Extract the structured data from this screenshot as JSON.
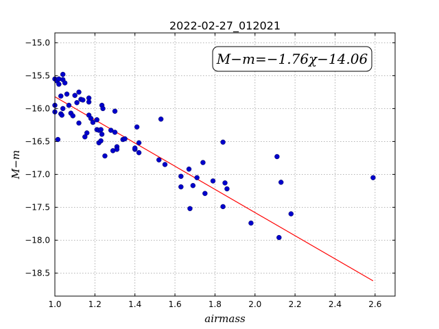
{
  "chart_data": {
    "type": "scatter",
    "title": "2022-02-27_012021",
    "xlabel": "airmass",
    "ylabel": "M−m",
    "annotation": "M−m=−1.76χ−14.06",
    "xlim": [
      1.0,
      2.7
    ],
    "ylim": [
      -18.85,
      -14.85
    ],
    "x_ticks": [
      1.0,
      1.2,
      1.4,
      1.6,
      1.8,
      2.0,
      2.2,
      2.4,
      2.6
    ],
    "x_tick_labels": [
      "1.0",
      "1.2",
      "1.4",
      "1.6",
      "1.8",
      "2.0",
      "2.2",
      "2.4",
      "2.6"
    ],
    "y_ticks": [
      -15.0,
      -15.5,
      -16.0,
      -16.5,
      -17.0,
      -17.5,
      -18.0,
      -18.5
    ],
    "y_tick_labels": [
      "−15.0",
      "−15.5",
      "−16.0",
      "−16.5",
      "−17.0",
      "−17.5",
      "−18.0",
      "−18.5"
    ],
    "grid": true,
    "fit_line": {
      "slope": -1.76,
      "intercept": -14.06,
      "x_range": [
        1.0,
        2.59
      ],
      "color": "#ff0000"
    },
    "point_color": "#0000cc",
    "points": [
      [
        1.0,
        -15.55
      ],
      [
        1.0,
        -15.95
      ],
      [
        1.0,
        -16.05
      ],
      [
        1.01,
        -15.58
      ],
      [
        1.015,
        -16.47
      ],
      [
        1.02,
        -15.63
      ],
      [
        1.02,
        -15.55
      ],
      [
        1.03,
        -15.81
      ],
      [
        1.03,
        -16.08
      ],
      [
        1.035,
        -16.1
      ],
      [
        1.04,
        -15.48
      ],
      [
        1.04,
        -16.0
      ],
      [
        1.04,
        -15.56
      ],
      [
        1.05,
        -15.61
      ],
      [
        1.06,
        -15.78
      ],
      [
        1.07,
        -15.95
      ],
      [
        1.08,
        -16.07
      ],
      [
        1.09,
        -16.11
      ],
      [
        1.1,
        -15.8
      ],
      [
        1.11,
        -15.91
      ],
      [
        1.12,
        -16.22
      ],
      [
        1.12,
        -15.75
      ],
      [
        1.13,
        -15.86
      ],
      [
        1.14,
        -15.87
      ],
      [
        1.15,
        -16.43
      ],
      [
        1.16,
        -16.37
      ],
      [
        1.17,
        -15.84
      ],
      [
        1.17,
        -15.9
      ],
      [
        1.17,
        -16.1
      ],
      [
        1.18,
        -16.15
      ],
      [
        1.19,
        -16.21
      ],
      [
        1.21,
        -16.17
      ],
      [
        1.21,
        -16.32
      ],
      [
        1.22,
        -16.52
      ],
      [
        1.22,
        -16.33
      ],
      [
        1.23,
        -16.32
      ],
      [
        1.23,
        -16.49
      ],
      [
        1.235,
        -16.39
      ],
      [
        1.235,
        -15.95
      ],
      [
        1.24,
        -16.0
      ],
      [
        1.25,
        -16.72
      ],
      [
        1.28,
        -16.33
      ],
      [
        1.29,
        -16.64
      ],
      [
        1.3,
        -16.36
      ],
      [
        1.3,
        -16.04
      ],
      [
        1.31,
        -16.58
      ],
      [
        1.31,
        -16.62
      ],
      [
        1.34,
        -16.47
      ],
      [
        1.35,
        -16.46
      ],
      [
        1.4,
        -16.62
      ],
      [
        1.4,
        -16.6
      ],
      [
        1.41,
        -16.28
      ],
      [
        1.42,
        -16.52
      ],
      [
        1.42,
        -16.67
      ],
      [
        1.52,
        -16.78
      ],
      [
        1.53,
        -16.16
      ],
      [
        1.55,
        -16.85
      ],
      [
        1.63,
        -17.03
      ],
      [
        1.63,
        -17.19
      ],
      [
        1.67,
        -16.92
      ],
      [
        1.675,
        -17.52
      ],
      [
        1.69,
        -17.17
      ],
      [
        1.71,
        -17.05
      ],
      [
        1.74,
        -16.82
      ],
      [
        1.75,
        -17.29
      ],
      [
        1.79,
        -17.1
      ],
      [
        1.84,
        -16.51
      ],
      [
        1.84,
        -17.49
      ],
      [
        1.85,
        -17.13
      ],
      [
        1.86,
        -17.22
      ],
      [
        1.98,
        -17.74
      ],
      [
        2.11,
        -16.73
      ],
      [
        2.12,
        -17.96
      ],
      [
        2.13,
        -17.12
      ],
      [
        2.18,
        -17.6
      ],
      [
        2.59,
        -17.05
      ]
    ]
  }
}
